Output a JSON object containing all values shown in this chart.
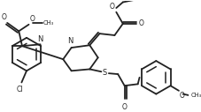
{
  "bg_color": "#ffffff",
  "line_color": "#222222",
  "line_width": 1.3,
  "figsize": [
    2.27,
    1.27
  ],
  "dpi": 100,
  "xlim": [
    0,
    227
  ],
  "ylim": [
    0,
    127
  ]
}
